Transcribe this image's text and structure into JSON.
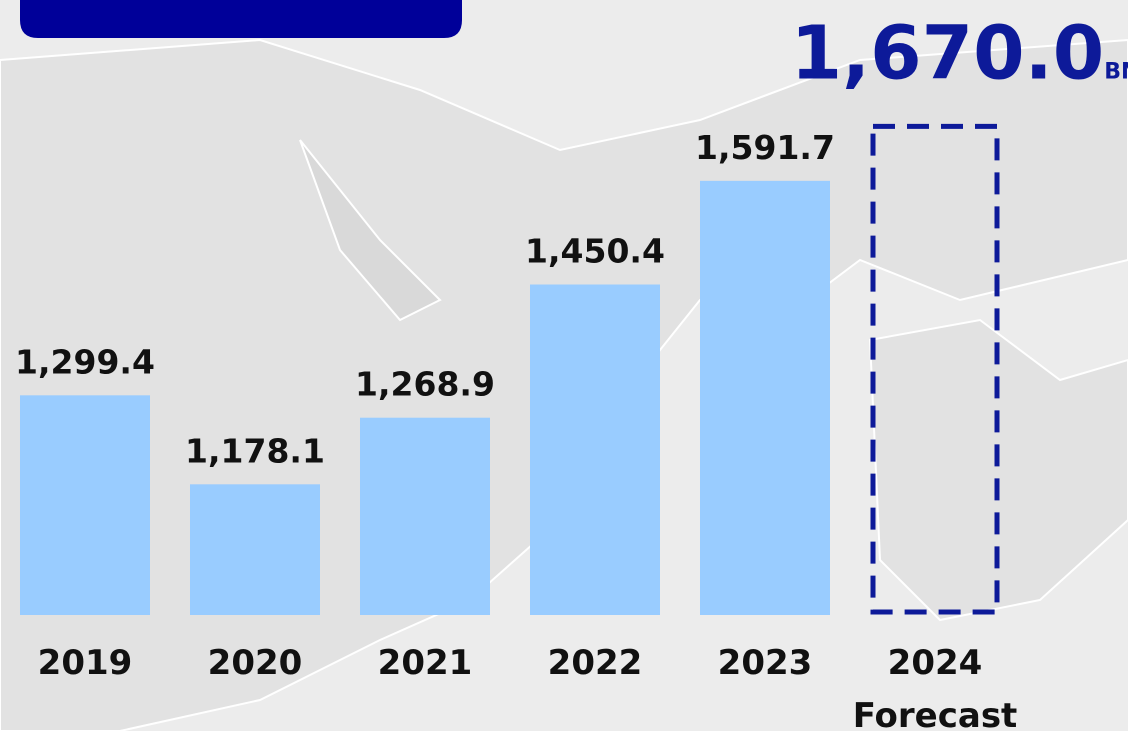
{
  "chart_data": {
    "type": "bar",
    "categories": [
      "2019",
      "2020",
      "2021",
      "2022",
      "2023",
      "2024"
    ],
    "values": [
      1299.4,
      1178.1,
      1268.9,
      1450.4,
      1591.7,
      1670.0
    ],
    "value_labels": [
      "1,299.4",
      "1,178.1",
      "1,268.9",
      "1,450.4",
      "1,591.7",
      "1,670.0"
    ],
    "forecast": [
      false,
      false,
      false,
      false,
      false,
      true
    ],
    "forecast_label": "Forecast",
    "unit": "BN",
    "color": "#99ccff",
    "forecast_color": "#0d1a99",
    "ylim": [
      1000,
      1800
    ]
  }
}
